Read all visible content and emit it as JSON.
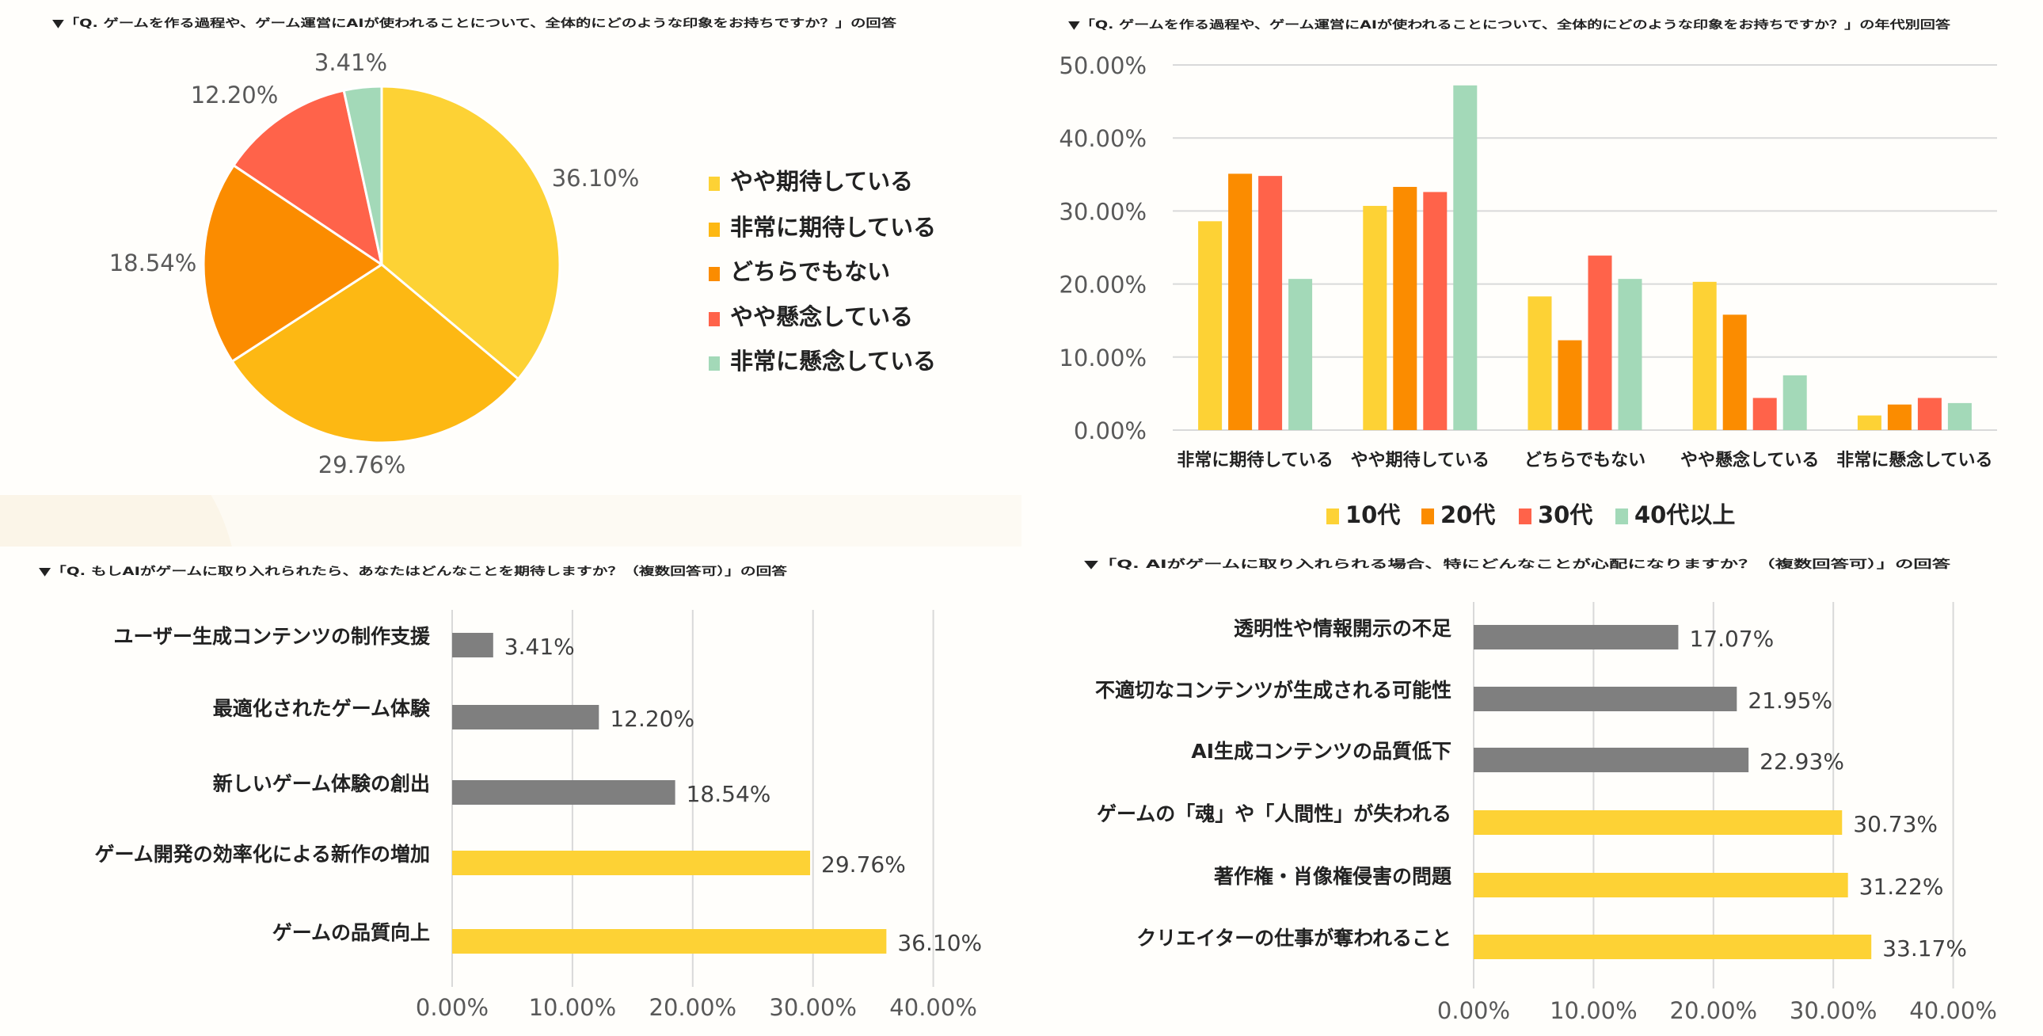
{
  "chart_data": [
    {
      "type": "pie",
      "title": "▼「Q. ゲームを作る過程や、ゲーム運営にAIが使われることについて、全体的にどのような印象をお持ちですか？」の回答",
      "categories": [
        "やや期待している",
        "非常に期待している",
        "どちらでもない",
        "やや懸念している",
        "非常に懸念している"
      ],
      "values": [
        36.1,
        29.76,
        18.54,
        12.2,
        3.41
      ],
      "data_labels": [
        "36.10%",
        "29.76%",
        "18.54%",
        "12.20%",
        "3.41%"
      ],
      "colors": [
        "#FDD235",
        "#FDB813",
        "#FB8C00",
        "#FF634A",
        "#A3D9B8"
      ],
      "legend": "right"
    },
    {
      "type": "bar",
      "title": "▼「Q. ゲームを作る過程や、ゲーム運営にAIが使われることについて、全体的にどのような印象をお持ちですか？」の年代別回答",
      "categories": [
        "非常に期待している",
        "やや期待している",
        "どちらでもない",
        "やや懸念している",
        "非常に懸念している"
      ],
      "series": [
        {
          "name": "10代",
          "values": [
            28.6,
            30.7,
            18.3,
            20.3,
            2.0
          ],
          "color": "#FDD235"
        },
        {
          "name": "20代",
          "values": [
            35.1,
            33.3,
            12.3,
            15.8,
            3.5
          ],
          "color": "#FB8C00"
        },
        {
          "name": "30代",
          "values": [
            34.8,
            32.6,
            23.9,
            4.4,
            4.4
          ],
          "color": "#FF634A"
        },
        {
          "name": "40代以上",
          "values": [
            20.7,
            47.2,
            20.7,
            7.5,
            3.7
          ],
          "color": "#A3D9B8"
        }
      ],
      "ylim": [
        0,
        50
      ],
      "yticks": [
        "0.00%",
        "10.00%",
        "20.00%",
        "30.00%",
        "40.00%",
        "50.00%"
      ],
      "grid": true,
      "legend": "bottom"
    },
    {
      "type": "bar",
      "orientation": "horizontal",
      "title": "▼「Q. もしAIがゲームに取り入れられたら、あなたはどんなことを期待しますか？（複数回答可）」の回答",
      "categories": [
        "ユーザー生成コンテンツの制作支援",
        "最適化されたゲーム体験",
        "新しいゲーム体験の創出",
        "ゲーム開発の効率化による新作の増加",
        "ゲームの品質向上"
      ],
      "values": [
        3.41,
        12.2,
        18.54,
        29.76,
        36.1
      ],
      "data_labels": [
        "3.41%",
        "12.20%",
        "18.54%",
        "29.76%",
        "36.10%"
      ],
      "colors": [
        "#7F7F7F",
        "#7F7F7F",
        "#7F7F7F",
        "#FDD235",
        "#FDD235"
      ],
      "xlim": [
        0,
        40
      ],
      "xticks": [
        "0.00%",
        "10.00%",
        "20.00%",
        "30.00%",
        "40.00%"
      ],
      "grid": true
    },
    {
      "type": "bar",
      "orientation": "horizontal",
      "title": "▼「Q. AIがゲームに取り入れられる場合、特にどんなことが心配になりますか？（複数回答可）」の回答",
      "categories": [
        "透明性や情報開示の不足",
        "不適切なコンテンツが生成される可能性",
        "AI生成コンテンツの品質低下",
        "ゲームの「魂」や「人間性」が失われる",
        "著作権・肖像権侵害の問題",
        "クリエイターの仕事が奪われること"
      ],
      "values": [
        17.07,
        21.95,
        22.93,
        30.73,
        31.22,
        33.17
      ],
      "data_labels": [
        "17.07%",
        "21.95%",
        "22.93%",
        "30.73%",
        "31.22%",
        "33.17%"
      ],
      "colors": [
        "#7F7F7F",
        "#7F7F7F",
        "#7F7F7F",
        "#FDD235",
        "#FDD235",
        "#FDD235"
      ],
      "xlim": [
        0,
        40
      ],
      "xticks": [
        "0.00%",
        "10.00%",
        "20.00%",
        "30.00%",
        "40.00%"
      ],
      "grid": true
    }
  ]
}
